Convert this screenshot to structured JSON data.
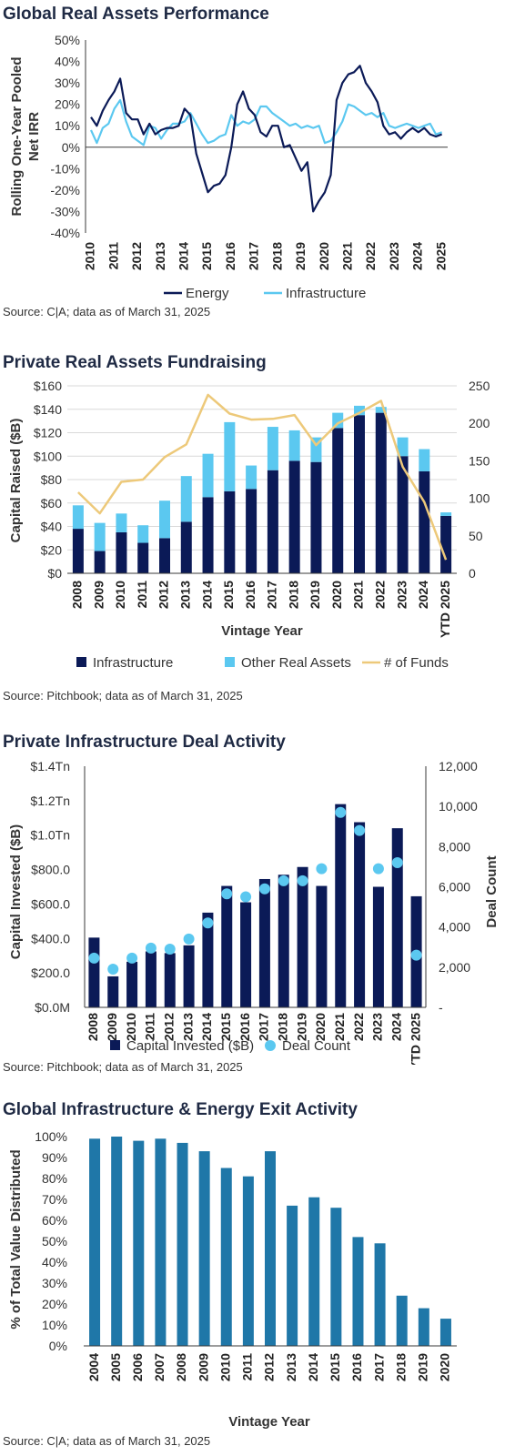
{
  "colors": {
    "navy": "#0b1a57",
    "light_blue": "#5bc8f0",
    "gold": "#edc97a",
    "steel_blue": "#1f77a8",
    "axis": "#3a3a3a"
  },
  "chart_data": [
    {
      "type": "line",
      "title": "Global Real Assets Performance",
      "ylabel": "Rolling One-Year Pooled Net IRR",
      "source": "Source: C|A; data as of March 31, 2025",
      "ylim": [
        -40,
        50
      ],
      "ytick_values": [
        -40,
        -30,
        -20,
        -10,
        0,
        10,
        20,
        30,
        40,
        50
      ],
      "ytick_labels": [
        "-40%",
        "-30%",
        "-20%",
        "-10%",
        "0%",
        "10%",
        "20%",
        "30%",
        "40%",
        "50%"
      ],
      "xlim": [
        2010,
        2025.25
      ],
      "xtick_labels": [
        "2010",
        "2011",
        "2012",
        "2013",
        "2014",
        "2015",
        "2016",
        "2017",
        "2018",
        "2019",
        "2020",
        "2021",
        "2022",
        "2023",
        "2024",
        "2025"
      ],
      "legend_position": "bottom",
      "series": [
        {
          "name": "Energy",
          "x": [
            2010.0,
            2010.25,
            2010.5,
            2010.75,
            2011.0,
            2011.25,
            2011.5,
            2011.75,
            2012.0,
            2012.25,
            2012.5,
            2012.75,
            2013.0,
            2013.25,
            2013.5,
            2013.75,
            2014.0,
            2014.25,
            2014.5,
            2014.75,
            2015.0,
            2015.25,
            2015.5,
            2015.75,
            2016.0,
            2016.25,
            2016.5,
            2016.75,
            2017.0,
            2017.25,
            2017.5,
            2017.75,
            2018.0,
            2018.25,
            2018.5,
            2018.75,
            2019.0,
            2019.25,
            2019.5,
            2019.75,
            2020.0,
            2020.25,
            2020.5,
            2020.75,
            2021.0,
            2021.25,
            2021.5,
            2021.75,
            2022.0,
            2022.25,
            2022.5,
            2022.75,
            2023.0,
            2023.25,
            2023.5,
            2023.75,
            2024.0,
            2024.25,
            2024.5,
            2024.75,
            2025.0
          ],
          "values": [
            14,
            10,
            17,
            22,
            26,
            32,
            16,
            13,
            13,
            6,
            11,
            6,
            8,
            9,
            9,
            10,
            18,
            15,
            -3,
            -12,
            -21,
            -18,
            -17,
            -13,
            0,
            20,
            26,
            18,
            15,
            7,
            5,
            10,
            10,
            0,
            1,
            -5,
            -11,
            -7,
            -30,
            -25,
            -21,
            -13,
            22,
            30,
            34,
            35,
            38,
            30,
            26,
            21,
            10,
            6,
            7,
            4,
            7,
            9,
            7,
            9,
            6,
            5,
            6
          ]
        },
        {
          "name": "Infrastructure",
          "x": [
            2010.0,
            2010.25,
            2010.5,
            2010.75,
            2011.0,
            2011.25,
            2011.5,
            2011.75,
            2012.0,
            2012.25,
            2012.5,
            2012.75,
            2013.0,
            2013.25,
            2013.5,
            2013.75,
            2014.0,
            2014.25,
            2014.5,
            2014.75,
            2015.0,
            2015.25,
            2015.5,
            2015.75,
            2016.0,
            2016.25,
            2016.5,
            2016.75,
            2017.0,
            2017.25,
            2017.5,
            2017.75,
            2018.0,
            2018.25,
            2018.5,
            2018.75,
            2019.0,
            2019.25,
            2019.5,
            2019.75,
            2020.0,
            2020.25,
            2020.5,
            2020.75,
            2021.0,
            2021.25,
            2021.5,
            2021.75,
            2022.0,
            2022.25,
            2022.5,
            2022.75,
            2023.0,
            2023.25,
            2023.5,
            2023.75,
            2024.0,
            2024.25,
            2024.5,
            2024.75,
            2025.0
          ],
          "values": [
            8,
            2,
            9,
            11,
            18,
            22,
            12,
            5,
            3,
            1,
            10,
            9,
            4,
            8,
            11,
            11,
            12,
            16,
            11,
            6,
            2,
            3,
            5,
            6,
            15,
            10,
            12,
            11,
            13,
            19,
            19,
            16,
            14,
            12,
            10,
            11,
            9,
            10,
            9,
            10,
            2,
            3,
            7,
            12,
            20,
            19,
            17,
            15,
            16,
            14,
            16,
            10,
            9,
            10,
            11,
            10,
            9,
            10,
            11,
            6,
            7
          ]
        }
      ]
    },
    {
      "type": "bar",
      "title": "Private Real Assets Fundraising",
      "xlabel": "Vintage Year",
      "ylabel": "Capital Raised ($B)",
      "source": "Source: Pitchbook; data as of March 31, 2025",
      "ylim": [
        0,
        160
      ],
      "ytick_values": [
        0,
        20,
        40,
        60,
        80,
        100,
        120,
        140,
        160
      ],
      "ytick_labels": [
        "$0",
        "$20",
        "$40",
        "$60",
        "$80",
        "$100",
        "$120",
        "$140",
        "$160"
      ],
      "y2lim": [
        0,
        250
      ],
      "y2tick_values": [
        0,
        50,
        100,
        150,
        200,
        250
      ],
      "y2tick_labels": [
        "0",
        "50",
        "100",
        "150",
        "200",
        "250"
      ],
      "categories": [
        "2008",
        "2009",
        "2010",
        "2011",
        "2012",
        "2013",
        "2014",
        "2015",
        "2016",
        "2017",
        "2018",
        "2019",
        "2020",
        "2021",
        "2022",
        "2023",
        "2024",
        "YTD 2025"
      ],
      "legend_position": "bottom",
      "series": [
        {
          "name": "Infrastructure",
          "kind": "stacked-bar",
          "axis": "left",
          "values": [
            38,
            19,
            35,
            26,
            30,
            44,
            65,
            70,
            72,
            88,
            96,
            95,
            124,
            135,
            137,
            100,
            87,
            49
          ]
        },
        {
          "name": "Other Real Assets",
          "kind": "stacked-bar",
          "axis": "left",
          "values": [
            20,
            24,
            16,
            15,
            32,
            39,
            37,
            59,
            20,
            37,
            26,
            21,
            13,
            8,
            5,
            16,
            19,
            3
          ]
        },
        {
          "name": "# of Funds",
          "kind": "line",
          "axis": "right",
          "values": [
            108,
            80,
            122,
            125,
            155,
            172,
            238,
            213,
            205,
            206,
            211,
            171,
            200,
            214,
            230,
            142,
            95,
            18
          ]
        }
      ]
    },
    {
      "type": "bar",
      "title": "Private Infrastructure Deal Activity",
      "ylabel": "Capital Invested ($B)",
      "y2label": "Deal Count",
      "source": "Source: Pitchbook; data as of March 31, 2025",
      "ylim": [
        0,
        1400
      ],
      "ytick_values": [
        0,
        200,
        400,
        600,
        800,
        1000,
        1200,
        1400
      ],
      "ytick_labels": [
        "$0.0M",
        "$200.0",
        "$400.0",
        "$600.0",
        "$800.0",
        "$1.0Tn",
        "$1.2Tn",
        "$1.4Tn"
      ],
      "y2lim": [
        0,
        12000
      ],
      "y2tick_values": [
        0,
        2000,
        4000,
        6000,
        8000,
        10000,
        12000
      ],
      "y2tick_labels": [
        "-",
        "2,000",
        "4,000",
        "6,000",
        "8,000",
        "10,000",
        "12,000"
      ],
      "categories": [
        "2008",
        "2009",
        "2010",
        "2011",
        "2012",
        "2013",
        "2014",
        "2015",
        "2016",
        "2017",
        "2018",
        "2019",
        "2020",
        "2021",
        "2022",
        "2023",
        "2024",
        "YTD 2025"
      ],
      "legend_position": "bottom",
      "series": [
        {
          "name": "Capital Invested ($B)",
          "kind": "bar",
          "axis": "left",
          "values": [
            405,
            180,
            265,
            325,
            315,
            360,
            550,
            705,
            610,
            745,
            770,
            815,
            705,
            1180,
            1075,
            700,
            1040,
            645
          ]
        },
        {
          "name": "Deal Count",
          "kind": "dots",
          "axis": "right",
          "values": [
            2450,
            1900,
            2450,
            2950,
            2900,
            3400,
            4200,
            5650,
            5500,
            5900,
            6300,
            6300,
            6900,
            9700,
            8800,
            6900,
            7200,
            2600
          ]
        }
      ]
    },
    {
      "type": "bar",
      "title": "Global Infrastructure & Energy Exit Activity",
      "xlabel": "Vintage Year",
      "ylabel": "% of Total Value Distributed",
      "source": "Source: C|A; data as of March 31, 2025",
      "ylim": [
        0,
        100
      ],
      "ytick_values": [
        0,
        10,
        20,
        30,
        40,
        50,
        60,
        70,
        80,
        90,
        100
      ],
      "ytick_labels": [
        "0%",
        "10%",
        "20%",
        "30%",
        "40%",
        "50%",
        "60%",
        "70%",
        "80%",
        "90%",
        "100%"
      ],
      "categories": [
        "2004",
        "2005",
        "2006",
        "2007",
        "2008",
        "2009",
        "2010",
        "2011",
        "2012",
        "2013",
        "2014",
        "2015",
        "2016",
        "2017",
        "2018",
        "2019",
        "2020"
      ],
      "values": [
        99,
        100,
        98,
        99,
        97,
        93,
        85,
        81,
        93,
        67,
        71,
        66,
        52,
        49,
        24,
        18,
        13
      ]
    }
  ]
}
